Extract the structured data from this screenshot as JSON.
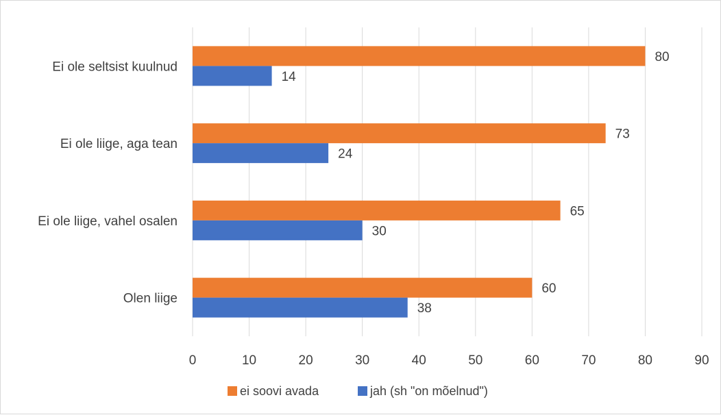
{
  "chart_data": {
    "type": "bar",
    "orientation": "horizontal",
    "categories": [
      "Ei ole seltsist kuulnud",
      "Ei ole liige, aga tean",
      "Ei ole liige, vahel osalen",
      "Olen liige"
    ],
    "series": [
      {
        "name": "ei soovi avada",
        "color": "#ed7d31",
        "values": [
          80,
          73,
          65,
          60
        ]
      },
      {
        "name": "jah (sh \"on mõelnud\")",
        "color": "#4472c4",
        "values": [
          14,
          24,
          30,
          38
        ]
      }
    ],
    "xlim": [
      0,
      90
    ],
    "xticks": [
      "0",
      "10",
      "20",
      "30",
      "40",
      "50",
      "60",
      "70",
      "80",
      "90"
    ],
    "grid": true,
    "legend_position": "bottom",
    "data_labels": true
  }
}
